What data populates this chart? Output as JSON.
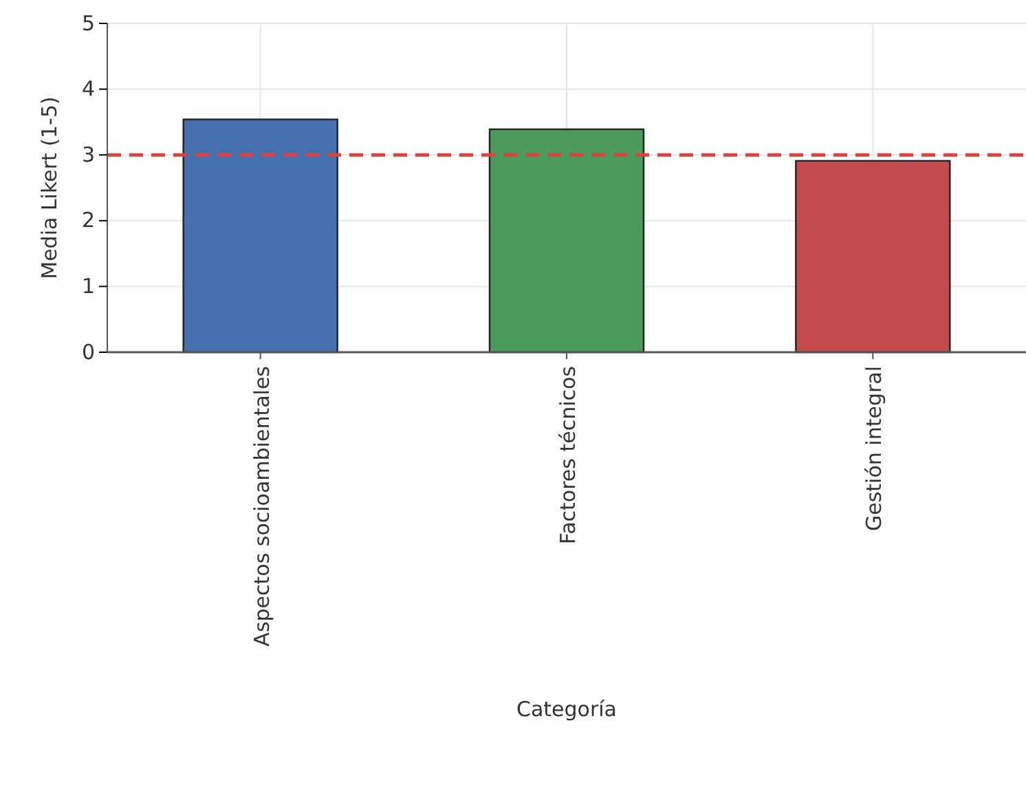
{
  "chart_data": {
    "type": "bar",
    "xlabel": "Categoría",
    "ylabel": "Media Likert (1-5)",
    "categories": [
      "Aspectos socioambientales",
      "Factores técnicos",
      "Gestión integral"
    ],
    "values": [
      3.54,
      3.39,
      2.91
    ],
    "colors": [
      "#4470b0",
      "#4b9c5c",
      "#c44a4d"
    ],
    "ylim": [
      0,
      5
    ],
    "yticks": [
      0,
      1,
      2,
      3,
      4,
      5
    ],
    "grid": true,
    "ref_lines": [
      {
        "axis": "y",
        "value": 3,
        "color": "#e0413c",
        "line_style": "dashed"
      }
    ]
  }
}
